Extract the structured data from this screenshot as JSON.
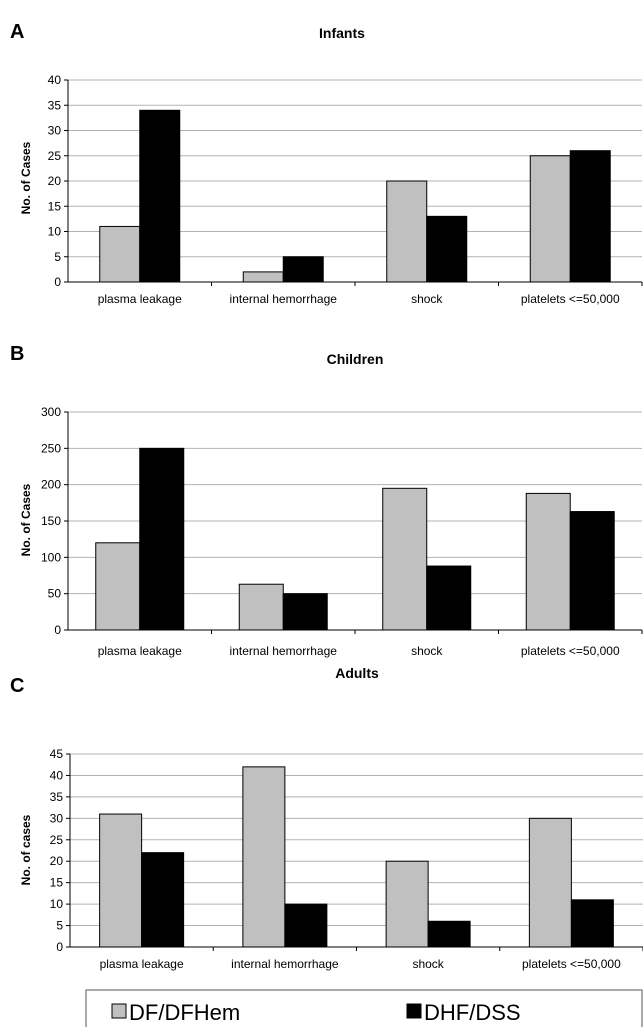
{
  "chart_data": [
    {
      "type": "bar",
      "panel": "A",
      "title": "Infants",
      "ylabel": "No. of Cases",
      "xlabel": "",
      "ylim": [
        0,
        40
      ],
      "yticks": [
        0,
        5,
        10,
        15,
        20,
        25,
        30,
        35,
        40
      ],
      "grid": true,
      "categories": [
        "plasma leakage",
        "internal hemorrhage",
        "shock",
        "platelets <=50,000"
      ],
      "series": [
        {
          "name": "DF/DFHem",
          "color": "#c0c0c0",
          "values": [
            11,
            2,
            20,
            25
          ]
        },
        {
          "name": "DHF/DSS",
          "color": "#000000",
          "values": [
            34,
            5,
            13,
            26
          ]
        }
      ]
    },
    {
      "type": "bar",
      "panel": "B",
      "title": "Children",
      "ylabel": "No. of Cases",
      "xlabel": "",
      "ylim": [
        0,
        300
      ],
      "yticks": [
        0,
        50,
        100,
        150,
        200,
        250,
        300
      ],
      "grid": true,
      "categories": [
        "plasma leakage",
        "internal hemorrhage",
        "shock",
        "platelets <=50,000"
      ],
      "series": [
        {
          "name": "DF/DFHem",
          "color": "#c0c0c0",
          "values": [
            120,
            63,
            195,
            188
          ]
        },
        {
          "name": "DHF/DSS",
          "color": "#000000",
          "values": [
            250,
            50,
            88,
            163
          ]
        }
      ]
    },
    {
      "type": "bar",
      "panel": "C",
      "title": "Adults",
      "ylabel": "No. of cases",
      "xlabel": "",
      "ylim": [
        0,
        45
      ],
      "yticks": [
        0,
        5,
        10,
        15,
        20,
        25,
        30,
        35,
        40,
        45
      ],
      "grid": true,
      "categories": [
        "plasma leakage",
        "internal hemorrhage",
        "shock",
        "platelets <=50,000"
      ],
      "series": [
        {
          "name": "DF/DFHem",
          "color": "#c0c0c0",
          "values": [
            31,
            42,
            20,
            30
          ]
        },
        {
          "name": "DHF/DSS",
          "color": "#000000",
          "values": [
            22,
            10,
            6,
            11
          ]
        }
      ]
    }
  ],
  "legend": {
    "placement": "bottom",
    "items": [
      {
        "label": "DF/DFHem",
        "color": "#c0c0c0"
      },
      {
        "label": "DHF/DSS",
        "color": "#000000"
      }
    ]
  }
}
